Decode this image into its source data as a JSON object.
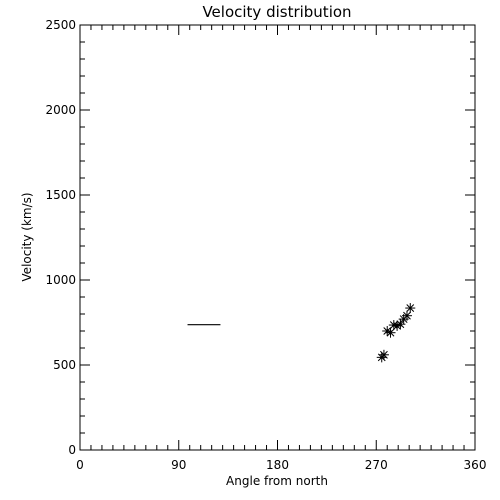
{
  "chart_data": {
    "type": "scatter",
    "title": "Velocity distribution",
    "xlabel": "Angle from north",
    "ylabel": "Velocity (km/s)",
    "xlim": [
      0,
      360
    ],
    "ylim": [
      0,
      2500
    ],
    "x_ticks": [
      0,
      90,
      180,
      270,
      360
    ],
    "x_tick_labels": [
      "0",
      "90",
      "180",
      "270",
      "360"
    ],
    "y_ticks": [
      0,
      500,
      1000,
      1500,
      2000,
      2500
    ],
    "y_tick_labels": [
      "0",
      "500",
      "1000",
      "1500",
      "2000",
      "2500"
    ],
    "x_minor_step": 10,
    "y_minor_step": 100,
    "grid": false,
    "series": [
      {
        "marker": "asterisk",
        "points": [
          [
            275,
            545
          ],
          [
            277,
            560
          ],
          [
            280,
            700
          ],
          [
            283,
            690
          ],
          [
            286,
            735
          ],
          [
            289,
            730
          ],
          [
            292,
            740
          ],
          [
            295,
            770
          ],
          [
            298,
            790
          ],
          [
            301,
            835
          ]
        ]
      }
    ],
    "segments": [
      {
        "x": [
          98,
          128
        ],
        "y": [
          737,
          737
        ]
      }
    ],
    "colors": {
      "foreground": "#000000",
      "background": "#ffffff"
    }
  }
}
